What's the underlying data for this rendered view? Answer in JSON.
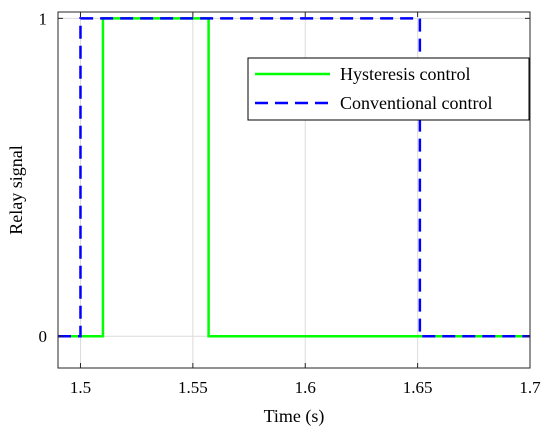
{
  "chart_data": {
    "type": "line",
    "xlabel": "Time (s)",
    "ylabel": "Relay signal",
    "xlim": [
      1.49,
      1.7
    ],
    "ylim": [
      -0.1,
      1.02
    ],
    "xticks": [
      1.5,
      1.55,
      1.6,
      1.65,
      1.7
    ],
    "xtick_labels": [
      "1.5",
      "1.55",
      "1.6",
      "1.65",
      "1.7"
    ],
    "yticks": [
      0,
      1
    ],
    "ytick_labels": [
      "0",
      "1"
    ],
    "grid": true,
    "legend_position": "top-right",
    "series": [
      {
        "name": "Hysteresis control",
        "color": "#00ff00",
        "style": "solid",
        "x": [
          1.49,
          1.51,
          1.51,
          1.557,
          1.557,
          1.7
        ],
        "y": [
          0,
          0,
          1,
          1,
          0,
          0
        ]
      },
      {
        "name": "Conventional control",
        "color": "#0000ff",
        "style": "dashed",
        "x": [
          1.49,
          1.5,
          1.5,
          1.651,
          1.651,
          1.7
        ],
        "y": [
          0,
          0,
          1,
          1,
          0,
          0
        ]
      }
    ]
  }
}
